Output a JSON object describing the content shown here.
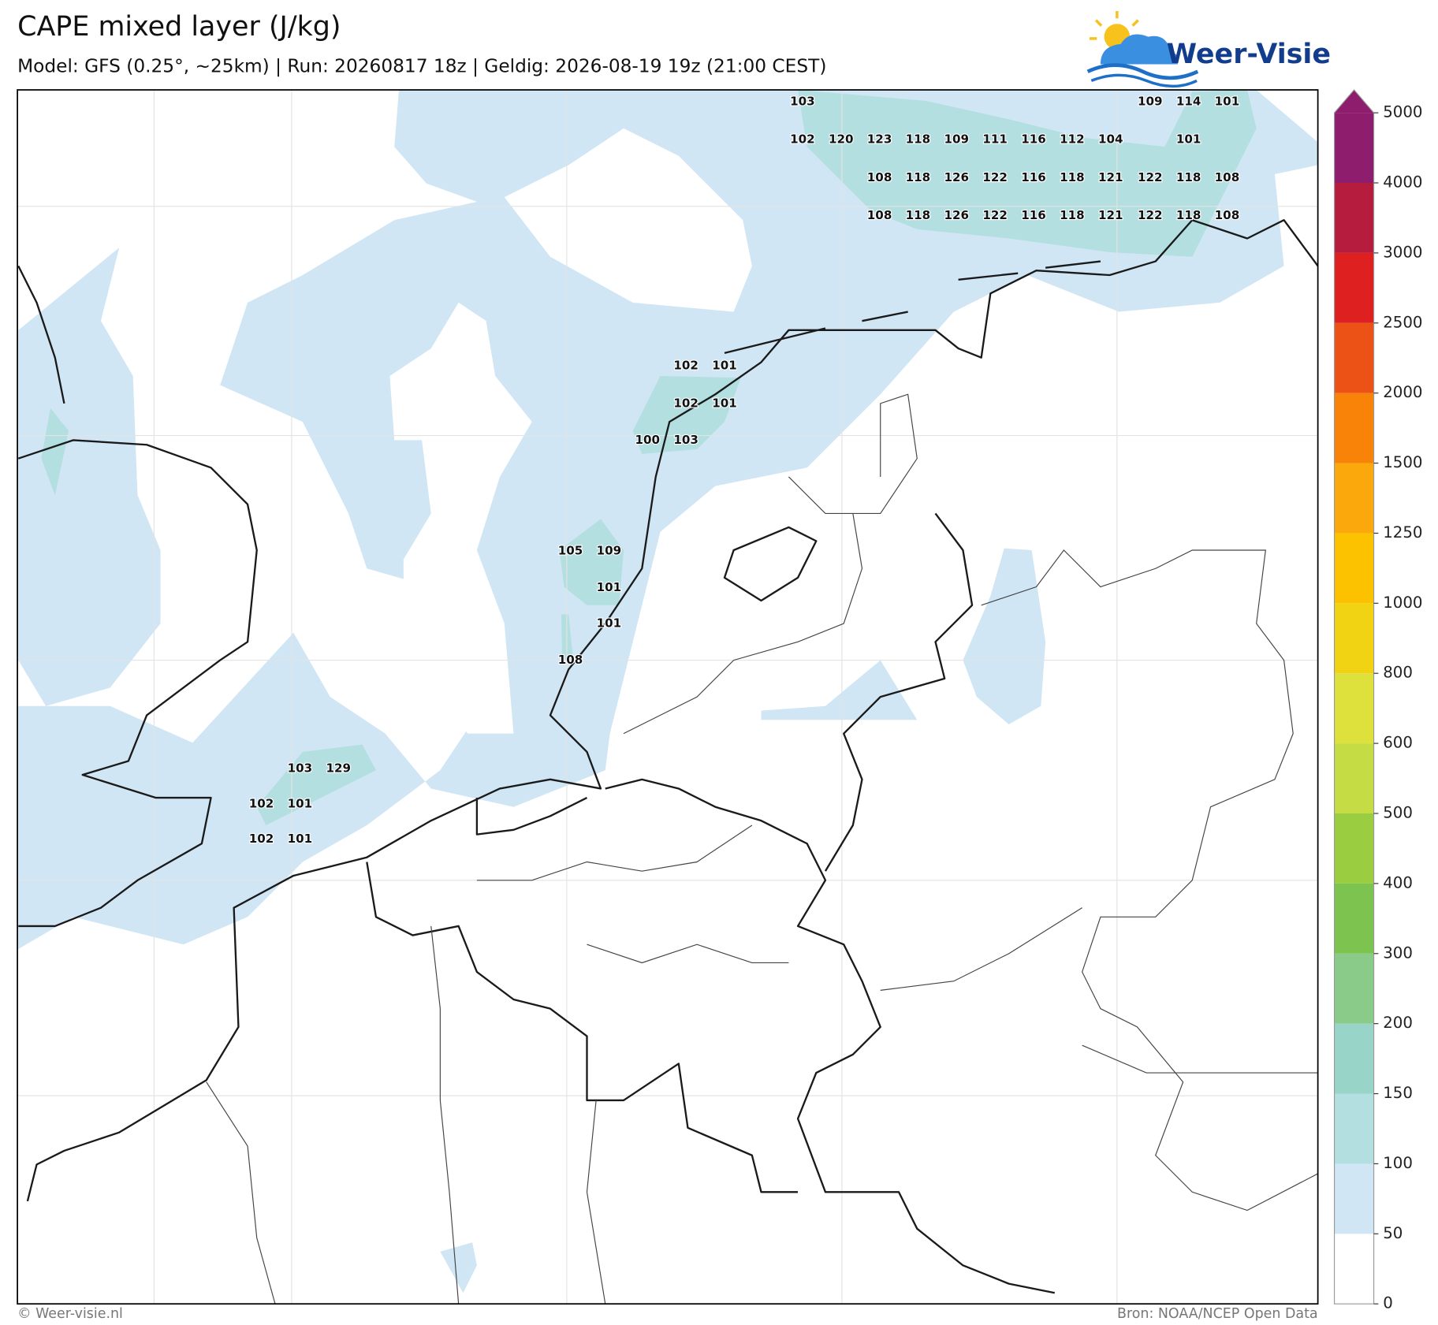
{
  "title": "CAPE mixed layer (J/kg)",
  "subtitle": "Model: GFS (0.25°, ~25km)  |  Run: 20260817 18z  |  Geldig: 2026-08-19 19z (21:00 CEST)",
  "logo": "Weer-Visie",
  "map_labels": [
    103,
    109,
    114,
    101,
    102,
    120,
    123,
    118,
    109,
    111,
    116,
    112,
    104,
    101,
    108,
    118,
    126,
    122,
    116,
    118,
    121,
    122,
    118,
    108,
    108,
    118,
    126,
    122,
    116,
    118,
    121,
    122,
    118,
    108,
    102,
    101,
    102,
    101,
    100,
    103,
    105,
    109,
    101,
    101,
    108,
    103,
    129,
    102,
    101,
    102,
    101
  ],
  "colorbar": {
    "ticks": [
      0,
      50,
      100,
      150,
      200,
      300,
      400,
      500,
      600,
      800,
      1000,
      1250,
      1500,
      2000,
      2500,
      3000,
      4000,
      5000
    ],
    "colors": [
      "#ffffff",
      "#d0e6f5",
      "#b3dfe0",
      "#98d5c8",
      "#8acb8a",
      "#7dc350",
      "#9acd3f",
      "#c5dc45",
      "#dee03c",
      "#f2d313",
      "#fcc200",
      "#fba80c",
      "#f98308",
      "#ec5215",
      "#de2020",
      "#b51c3e",
      "#8e1d6e"
    ]
  },
  "footer_left": "© Weer-visie.nl",
  "footer_right": "Bron: NOAA/NCEP Open Data"
}
